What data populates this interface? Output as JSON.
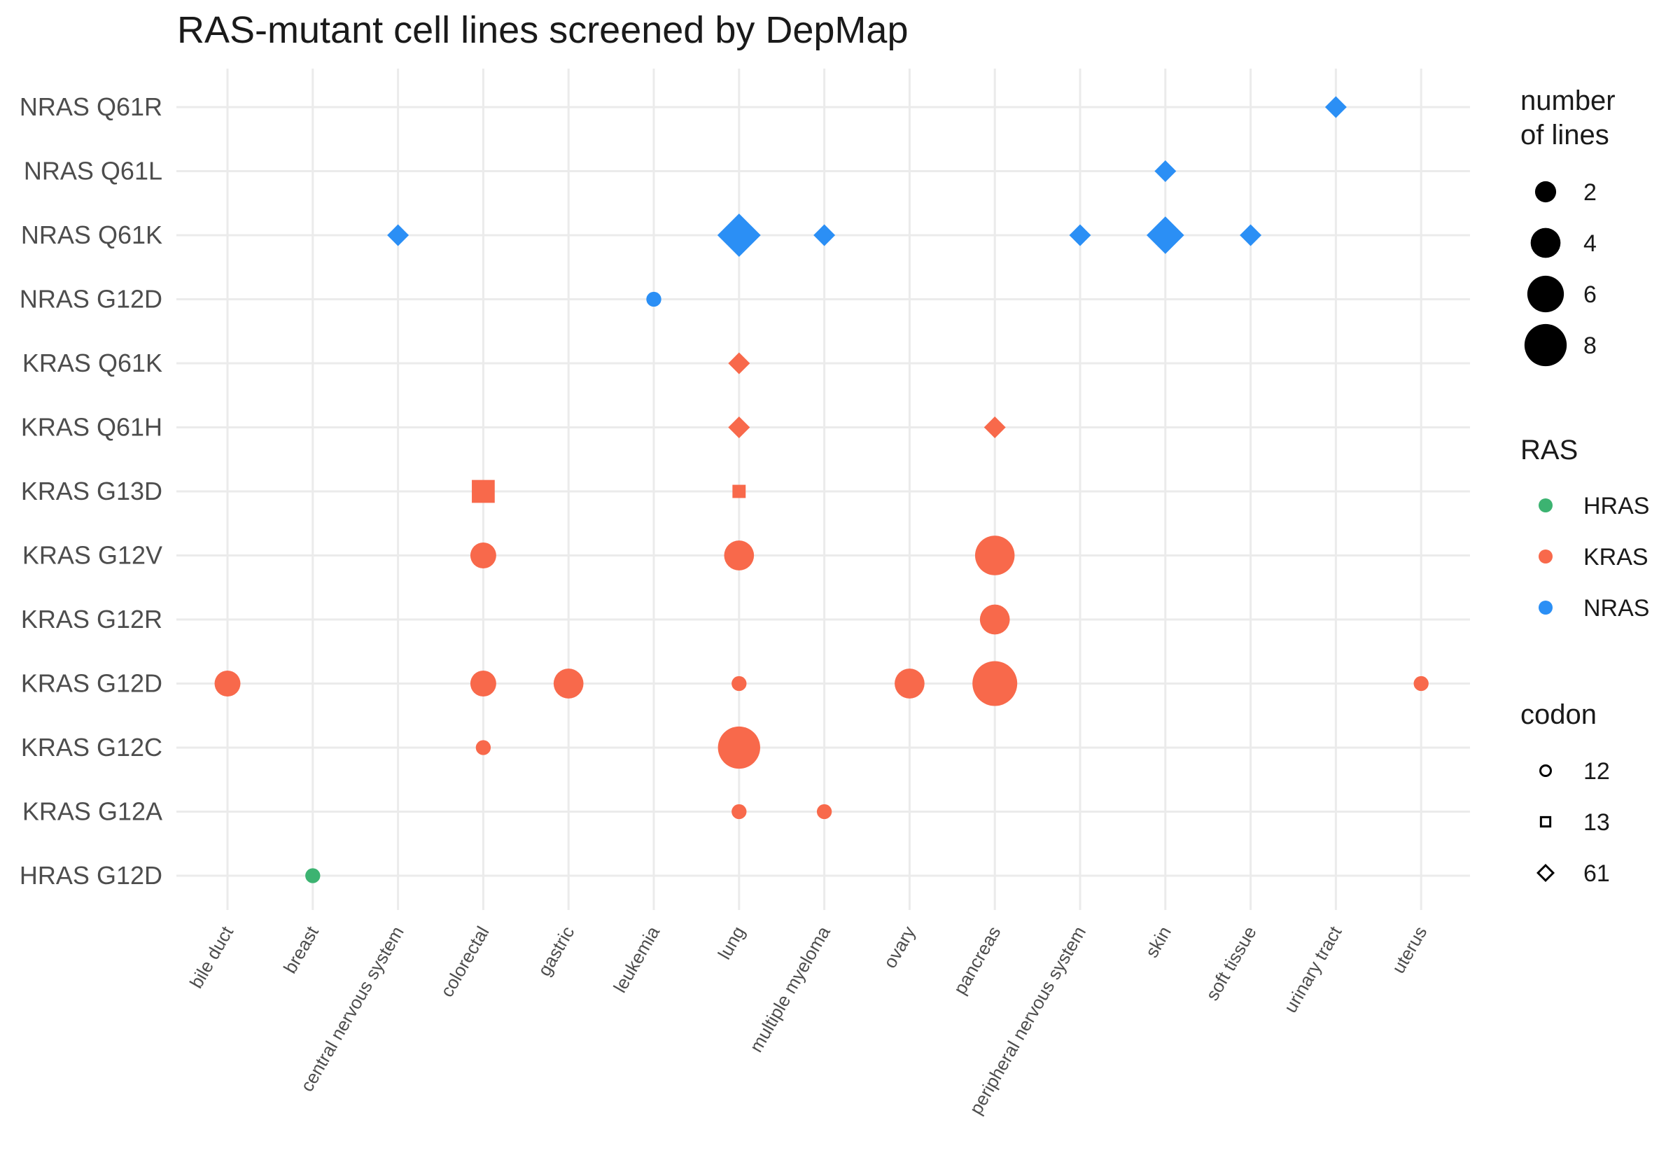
{
  "chart_data": {
    "type": "scatter",
    "title": "RAS-mutant cell lines screened by DepMap",
    "xlabel": "",
    "ylabel": "",
    "grid": true,
    "legend_position": "right",
    "x_categories": [
      "bile duct",
      "breast",
      "central nervous system",
      "colorectal",
      "gastric",
      "leukemia",
      "lung",
      "multiple myeloma",
      "ovary",
      "pancreas",
      "peripheral nervous system",
      "skin",
      "soft tissue",
      "urinary tract",
      "uterus"
    ],
    "y_categories": [
      "HRAS G12D",
      "KRAS G12A",
      "KRAS G12C",
      "KRAS G12D",
      "KRAS G12R",
      "KRAS G12V",
      "KRAS G13D",
      "KRAS Q61H",
      "KRAS Q61K",
      "NRAS G12D",
      "NRAS Q61K",
      "NRAS Q61L",
      "NRAS Q61R"
    ],
    "colors": {
      "HRAS": "#3cb371",
      "KRAS": "#f8694b",
      "NRAS": "#2b8ff5"
    },
    "points": [
      {
        "x": "breast",
        "y": "HRAS G12D",
        "ras": "HRAS",
        "codon": "12",
        "n": 1
      },
      {
        "x": "lung",
        "y": "KRAS G12A",
        "ras": "KRAS",
        "codon": "12",
        "n": 1
      },
      {
        "x": "multiple myeloma",
        "y": "KRAS G12A",
        "ras": "KRAS",
        "codon": "12",
        "n": 1
      },
      {
        "x": "colorectal",
        "y": "KRAS G12C",
        "ras": "KRAS",
        "codon": "12",
        "n": 1
      },
      {
        "x": "lung",
        "y": "KRAS G12C",
        "ras": "KRAS",
        "codon": "12",
        "n": 8
      },
      {
        "x": "bile duct",
        "y": "KRAS G12D",
        "ras": "KRAS",
        "codon": "12",
        "n": 3
      },
      {
        "x": "colorectal",
        "y": "KRAS G12D",
        "ras": "KRAS",
        "codon": "12",
        "n": 3
      },
      {
        "x": "gastric",
        "y": "KRAS G12D",
        "ras": "KRAS",
        "codon": "12",
        "n": 4
      },
      {
        "x": "lung",
        "y": "KRAS G12D",
        "ras": "KRAS",
        "codon": "12",
        "n": 1
      },
      {
        "x": "ovary",
        "y": "KRAS G12D",
        "ras": "KRAS",
        "codon": "12",
        "n": 4
      },
      {
        "x": "pancreas",
        "y": "KRAS G12D",
        "ras": "KRAS",
        "codon": "12",
        "n": 9
      },
      {
        "x": "uterus",
        "y": "KRAS G12D",
        "ras": "KRAS",
        "codon": "12",
        "n": 1
      },
      {
        "x": "pancreas",
        "y": "KRAS G12R",
        "ras": "KRAS",
        "codon": "12",
        "n": 4
      },
      {
        "x": "colorectal",
        "y": "KRAS G12V",
        "ras": "KRAS",
        "codon": "12",
        "n": 3
      },
      {
        "x": "lung",
        "y": "KRAS G12V",
        "ras": "KRAS",
        "codon": "12",
        "n": 4
      },
      {
        "x": "pancreas",
        "y": "KRAS G12V",
        "ras": "KRAS",
        "codon": "12",
        "n": 7
      },
      {
        "x": "colorectal",
        "y": "KRAS G13D",
        "ras": "KRAS",
        "codon": "13",
        "n": 3
      },
      {
        "x": "lung",
        "y": "KRAS G13D",
        "ras": "KRAS",
        "codon": "13",
        "n": 1
      },
      {
        "x": "lung",
        "y": "KRAS Q61H",
        "ras": "KRAS",
        "codon": "61",
        "n": 1
      },
      {
        "x": "pancreas",
        "y": "KRAS Q61H",
        "ras": "KRAS",
        "codon": "61",
        "n": 1
      },
      {
        "x": "lung",
        "y": "KRAS Q61K",
        "ras": "KRAS",
        "codon": "61",
        "n": 1
      },
      {
        "x": "leukemia",
        "y": "NRAS G12D",
        "ras": "NRAS",
        "codon": "12",
        "n": 1
      },
      {
        "x": "central nervous system",
        "y": "NRAS Q61K",
        "ras": "NRAS",
        "codon": "61",
        "n": 1
      },
      {
        "x": "lung",
        "y": "NRAS Q61K",
        "ras": "NRAS",
        "codon": "61",
        "n": 4
      },
      {
        "x": "multiple myeloma",
        "y": "NRAS Q61K",
        "ras": "NRAS",
        "codon": "61",
        "n": 1
      },
      {
        "x": "peripheral nervous system",
        "y": "NRAS Q61K",
        "ras": "NRAS",
        "codon": "61",
        "n": 1
      },
      {
        "x": "skin",
        "y": "NRAS Q61K",
        "ras": "NRAS",
        "codon": "61",
        "n": 3
      },
      {
        "x": "soft tissue",
        "y": "NRAS Q61K",
        "ras": "NRAS",
        "codon": "61",
        "n": 1
      },
      {
        "x": "skin",
        "y": "NRAS Q61L",
        "ras": "NRAS",
        "codon": "61",
        "n": 1
      },
      {
        "x": "urinary tract",
        "y": "NRAS Q61R",
        "ras": "NRAS",
        "codon": "61",
        "n": 1
      }
    ],
    "legend": {
      "size": {
        "title_lines": [
          "number",
          "of lines"
        ],
        "breaks": [
          2,
          4,
          6,
          8
        ]
      },
      "color": {
        "title": "RAS",
        "entries": [
          "HRAS",
          "KRAS",
          "NRAS"
        ]
      },
      "shape": {
        "title": "codon",
        "entries": [
          "12",
          "13",
          "61"
        ]
      }
    }
  }
}
